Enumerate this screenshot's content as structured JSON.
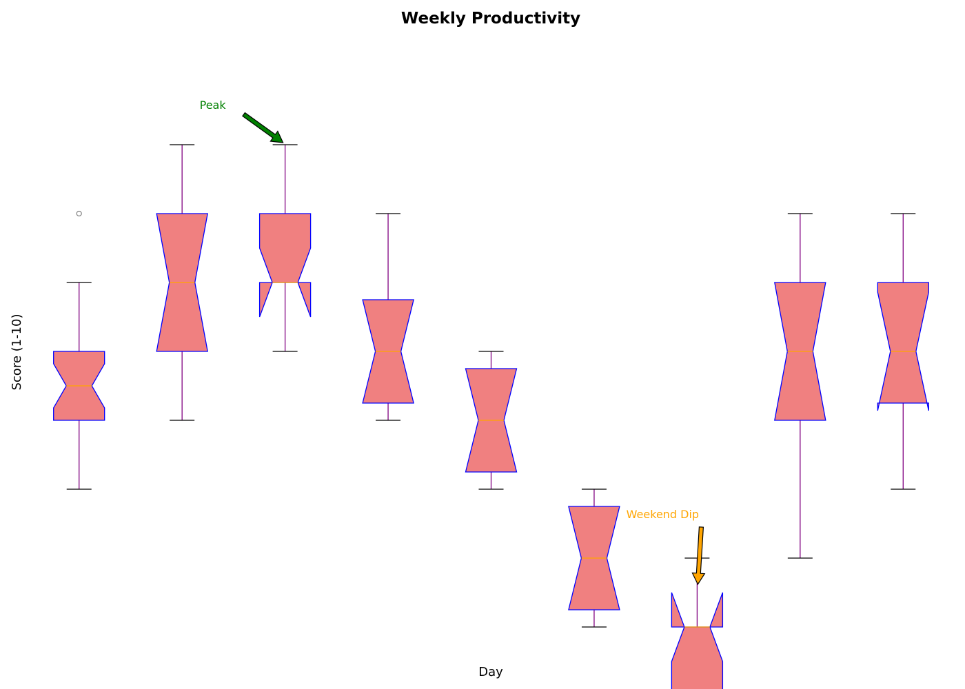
{
  "chart_data": {
    "type": "boxplot",
    "title": "Weekly Productivity",
    "xlabel": "Day",
    "ylabel": "Score (1-10)",
    "ylim": [
      1.4,
      10.6
    ],
    "notched": true,
    "colors": {
      "box_fill": "#f08080",
      "box_edge": "#0000ff",
      "whisker": "#800080",
      "cap": "#000000",
      "median": "#ffa500",
      "flier": "#808080"
    },
    "boxes": [
      {
        "q1": 5.0,
        "median": 5.5,
        "q3": 6.0,
        "notch_low": 5.18,
        "notch_high": 5.82,
        "whisker_low": 4.0,
        "whisker_high": 7.0,
        "fliers": [
          8.0
        ]
      },
      {
        "q1": 6.0,
        "median": 7.0,
        "q3": 8.0,
        "notch_low": 6.0,
        "notch_high": 8.0,
        "whisker_low": 5.0,
        "whisker_high": 9.0,
        "fliers": []
      },
      {
        "q1": 7.0,
        "median": 7.0,
        "q3": 8.0,
        "notch_low": 6.5,
        "notch_high": 7.5,
        "whisker_low": 6.0,
        "whisker_high": 9.0,
        "fliers": []
      },
      {
        "q1": 5.25,
        "median": 6.0,
        "q3": 6.75,
        "notch_low": 5.25,
        "notch_high": 6.75,
        "whisker_low": 5.0,
        "whisker_high": 8.0,
        "fliers": []
      },
      {
        "q1": 4.25,
        "median": 5.0,
        "q3": 5.75,
        "notch_low": 4.25,
        "notch_high": 5.75,
        "whisker_low": 4.0,
        "whisker_high": 6.0,
        "fliers": []
      },
      {
        "q1": 2.25,
        "median": 3.0,
        "q3": 3.75,
        "notch_low": 2.25,
        "notch_high": 3.75,
        "whisker_low": 2.0,
        "whisker_high": 4.0,
        "fliers": []
      },
      {
        "q1": 1.0,
        "median": 2.0,
        "q3": 2.0,
        "notch_low": 1.5,
        "notch_high": 2.5,
        "whisker_low": 1.0,
        "whisker_high": 3.0,
        "fliers": []
      },
      {
        "q1": 5.0,
        "median": 6.0,
        "q3": 7.0,
        "notch_low": 5.0,
        "notch_high": 7.0,
        "whisker_low": 3.0,
        "whisker_high": 8.0,
        "fliers": []
      },
      {
        "q1": 5.25,
        "median": 6.0,
        "q3": 7.0,
        "notch_low": 5.14,
        "notch_high": 6.86,
        "whisker_low": 4.0,
        "whisker_high": 8.0,
        "fliers": []
      }
    ],
    "annotations": [
      {
        "text": "Peak",
        "color": "#008000",
        "box_index": 2,
        "target_value": 9.0
      },
      {
        "text": "Weekend Dip",
        "color": "#ffa500",
        "box_index": 6,
        "target_value": 2.6
      }
    ]
  }
}
